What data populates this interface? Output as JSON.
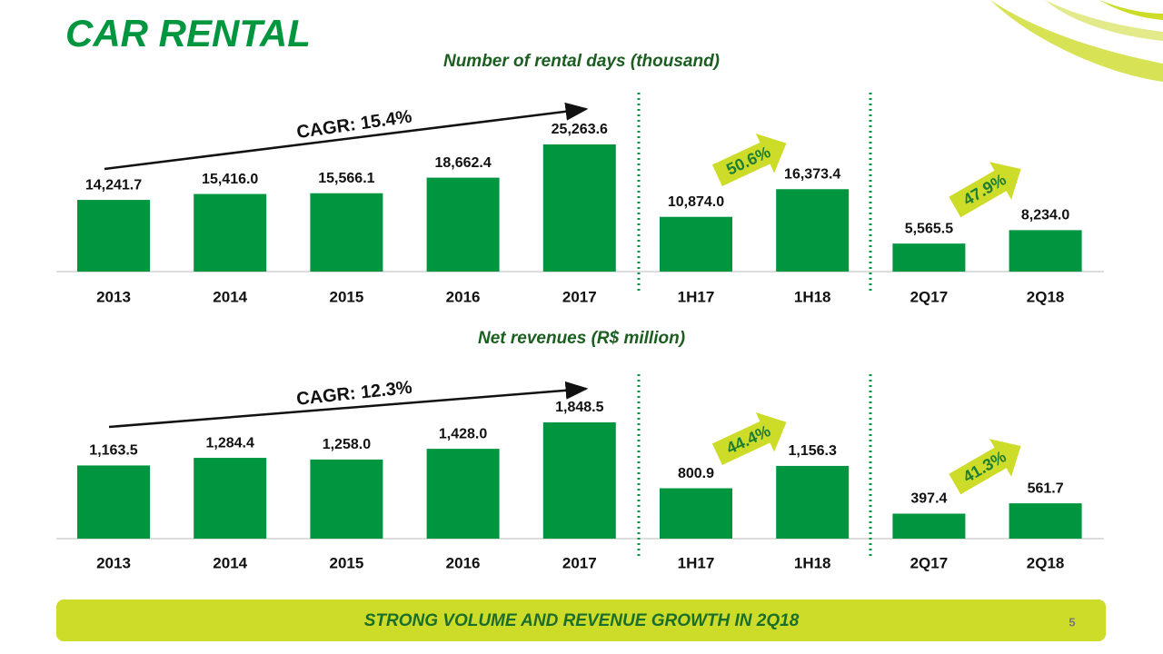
{
  "title": "CAR RENTAL",
  "footer": "STRONG VOLUME AND REVENUE GROWTH IN 2Q18",
  "page_number": "5",
  "chart_data": [
    {
      "type": "bar",
      "title": "Number of rental days (thousand)",
      "categories": [
        "2013",
        "2014",
        "2015",
        "2016",
        "2017",
        "1H17",
        "1H18",
        "2Q17",
        "2Q18"
      ],
      "values": [
        14241.7,
        15416.0,
        15566.1,
        18662.4,
        25263.6,
        10874.0,
        16373.4,
        5565.5,
        8234.0
      ],
      "value_labels": [
        "14,241.7",
        "15,416.0",
        "15,566.1",
        "18,662.4",
        "25,263.6",
        "10,874.0",
        "16,373.4",
        "5,565.5",
        "8,234.0"
      ],
      "color": "#00963f",
      "annotations": [
        "CAGR: 15.4%",
        "50.6%",
        "47.9%"
      ]
    },
    {
      "type": "bar",
      "title": "Net revenues (R$ million)",
      "categories": [
        "2013",
        "2014",
        "2015",
        "2016",
        "2017",
        "1H17",
        "1H18",
        "2Q17",
        "2Q18"
      ],
      "values": [
        1163.5,
        1284.4,
        1258.0,
        1428.0,
        1848.5,
        800.9,
        1156.3,
        397.4,
        561.7
      ],
      "value_labels": [
        "1,163.5",
        "1,284.4",
        "1,258.0",
        "1,428.0",
        "1,848.5",
        "800.9",
        "1,156.3",
        "397.4",
        "561.7"
      ],
      "color": "#00963f",
      "annotations": [
        "CAGR: 12.3%",
        "44.4%",
        "41.3%"
      ]
    }
  ]
}
